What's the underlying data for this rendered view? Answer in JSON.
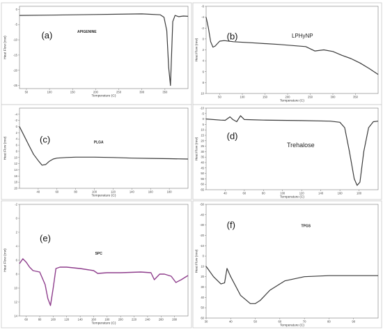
{
  "chart_data": [
    {
      "type": "line",
      "panel_label": "(a)",
      "title": "APIGENINE",
      "xlabel": "Temperature (C)",
      "ylabel": "Heat Flow (mw)",
      "xlim": [
        35,
        400
      ],
      "ylim": [
        -26,
        1
      ],
      "yreverse": true,
      "xticks": [
        50,
        100,
        150,
        200,
        250,
        300,
        350
      ],
      "yticks": [
        0,
        -5,
        -10,
        -15,
        -20,
        -25
      ],
      "color": "#3a3a3a",
      "series": [
        {
          "x": [
            35,
            100,
            200,
            300,
            340,
            348,
            354,
            358,
            362,
            367,
            372,
            380,
            390,
            400
          ],
          "y": [
            -2.0,
            -1.9,
            -1.7,
            -1.5,
            -1.8,
            -2.6,
            -7,
            -19,
            -25,
            -4,
            -2.0,
            -2.4,
            -2.2,
            -2.3
          ]
        }
      ]
    },
    {
      "type": "line",
      "panel_label": "(b)",
      "title": "LPHyNP",
      "xlabel": "Temperature (C)",
      "ylabel": "Heat Flow (mw)",
      "xlim": [
        20,
        400
      ],
      "ylim": [
        -6,
        10
      ],
      "yreverse": false,
      "xticks": [
        50,
        100,
        150,
        200,
        250,
        300,
        350
      ],
      "yticks": [
        -6,
        -4,
        -2,
        0,
        2,
        4,
        6,
        8,
        10
      ],
      "color": "#3a3a3a",
      "series": [
        {
          "x": [
            20,
            25,
            30,
            35,
            40,
            50,
            60,
            80,
            120,
            180,
            240,
            260,
            280,
            300,
            320,
            340,
            360,
            380,
            400
          ],
          "y": [
            -4,
            -2,
            0.5,
            1.5,
            1.3,
            0.4,
            0.3,
            0.5,
            0.7,
            1.0,
            1.4,
            2.2,
            2.0,
            2.3,
            3.0,
            3.6,
            4.4,
            5.4,
            6.5
          ]
        }
      ]
    },
    {
      "type": "line",
      "panel_label": "(c)",
      "title": "PLGA",
      "xlabel": "Temperature (C)",
      "ylabel": "Heat Flow (mw)",
      "xlim": [
        20,
        200
      ],
      "ylim": [
        -6,
        20
      ],
      "yreverse": false,
      "xticks": [
        40,
        60,
        80,
        100,
        120,
        140,
        160,
        180
      ],
      "yticks": [
        -4,
        -2,
        0,
        2,
        4,
        6,
        8,
        10,
        12,
        14,
        16,
        18,
        20
      ],
      "color": "#3a3a3a",
      "series": [
        {
          "x": [
            20,
            25,
            30,
            35,
            40,
            44,
            48,
            52,
            56,
            60,
            70,
            80,
            100,
            120,
            140,
            160,
            180,
            200
          ],
          "y": [
            0,
            3,
            6,
            9,
            11,
            12.5,
            12.3,
            11.2,
            10.5,
            10.2,
            10.0,
            9.9,
            9.9,
            10.0,
            10.2,
            10.3,
            10.4,
            10.5
          ]
        }
      ]
    },
    {
      "type": "line",
      "panel_label": "(d)",
      "title": "Trehalose",
      "xlabel": "Temperature (C)",
      "ylabel": "Heat Flow (mw)",
      "xlim": [
        20,
        200
      ],
      "ylim": [
        -10,
        65
      ],
      "yreverse": false,
      "xticks": [
        40,
        60,
        80,
        100,
        120,
        140,
        160,
        180
      ],
      "yticks": [
        -10,
        -5,
        0,
        5,
        10,
        15,
        20,
        25,
        30,
        35,
        40,
        45,
        50,
        55,
        60,
        65
      ],
      "color": "#3a3a3a",
      "series": [
        {
          "x": [
            20,
            35,
            40,
            45,
            48,
            52,
            56,
            60,
            80,
            120,
            150,
            160,
            165,
            170,
            175,
            178,
            181,
            185,
            190,
            195,
            200
          ],
          "y": [
            0,
            1,
            1.2,
            -2,
            0.5,
            2.5,
            -3,
            0.5,
            1.0,
            1.5,
            2.0,
            3,
            8,
            30,
            55,
            61,
            58,
            30,
            8,
            2.5,
            2
          ]
        }
      ]
    },
    {
      "type": "line",
      "panel_label": "(e)",
      "title": "SPC",
      "xlabel": "Temperature (C)",
      "ylabel": "Heat Flow (mw)",
      "xlim": [
        50,
        300
      ],
      "ylim": [
        -2,
        14
      ],
      "yreverse": false,
      "xticks": [
        60,
        80,
        100,
        120,
        140,
        160,
        180,
        200,
        220,
        240,
        260,
        280
      ],
      "yticks": [
        -2,
        0,
        2,
        4,
        6,
        8,
        10,
        12,
        14
      ],
      "color": "#8e3d8c",
      "series": [
        {
          "x": [
            50,
            55,
            60,
            65,
            70,
            80,
            88,
            92,
            96,
            100,
            104,
            110,
            120,
            140,
            160,
            166,
            180,
            200,
            230,
            245,
            250,
            258,
            265,
            275,
            282,
            290,
            300
          ],
          "y": [
            6.5,
            5.8,
            6.3,
            7.0,
            7.5,
            7.7,
            9.5,
            11.5,
            12.5,
            10,
            7.2,
            7.0,
            7.0,
            7.2,
            7.5,
            7.9,
            7.8,
            7.8,
            7.7,
            7.8,
            8.8,
            8.0,
            8.0,
            8.3,
            9.2,
            8.8,
            8.2
          ]
        }
      ]
    },
    {
      "type": "line",
      "panel_label": "(f)",
      "title": "TPGS",
      "xlabel": "Temperature (C)",
      "ylabel": "Heat Flow (mw)",
      "xlim": [
        30,
        100
      ],
      "ylim": [
        -50,
        60
      ],
      "yreverse": false,
      "xticks": [
        30,
        40,
        50,
        60,
        70,
        80,
        90
      ],
      "yticks": [
        -50,
        -40,
        -30,
        -20,
        -10,
        0,
        10,
        20,
        30,
        40,
        50,
        60
      ],
      "color": "#3a3a3a",
      "series": [
        {
          "x": [
            30,
            33,
            36,
            37.5,
            38.5,
            40,
            44,
            48,
            50,
            52,
            56,
            62,
            70,
            80,
            90,
            100
          ],
          "y": [
            10,
            20,
            27,
            26,
            12,
            20,
            38,
            46,
            46,
            43,
            33,
            24,
            20,
            19,
            19,
            19
          ]
        }
      ]
    }
  ]
}
